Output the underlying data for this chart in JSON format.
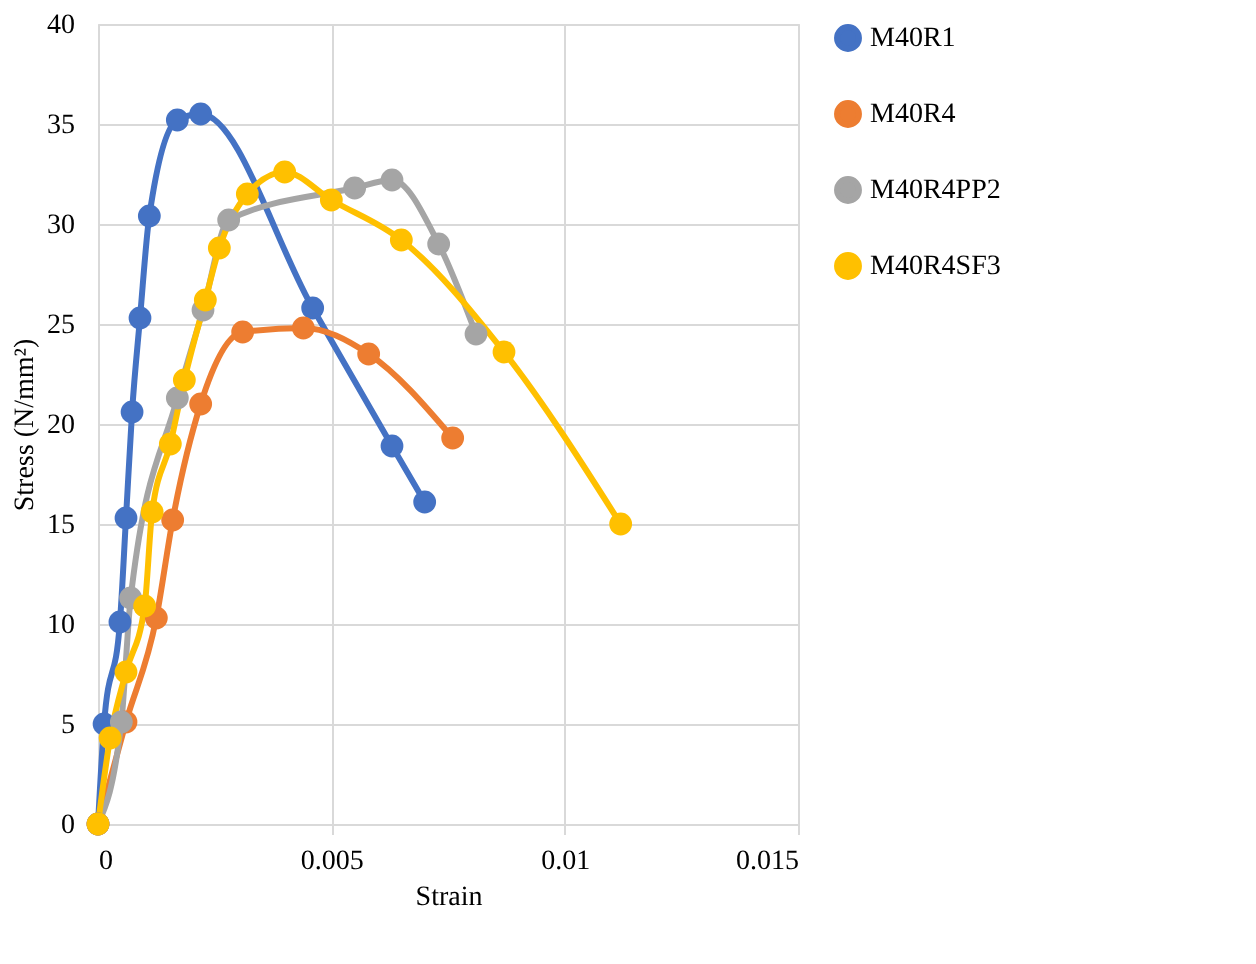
{
  "chart_data": {
    "type": "line",
    "xlabel": "Strain",
    "ylabel": "Stress (N/mm²)",
    "xlim": [
      0,
      0.015
    ],
    "xticks": [
      0,
      0.005,
      0.01,
      0.015
    ],
    "ylim": [
      0,
      40
    ],
    "yticks": [
      0,
      5,
      10,
      15,
      20,
      25,
      30,
      35,
      40
    ],
    "grid": true,
    "legend": "right",
    "marker": "circle",
    "line_style": "solid",
    "series": [
      {
        "name": "M40R1",
        "color": "#4472c4",
        "x": [
          0,
          0.00013,
          0.00047,
          0.0006,
          0.00073,
          0.0009,
          0.0011,
          0.0017,
          0.0022,
          0.0046,
          0.0063,
          0.007
        ],
        "values": [
          0,
          5,
          10.1,
          15.3,
          20.6,
          25.3,
          30.4,
          35.2,
          35.5,
          25.8,
          18.9,
          16.1
        ]
      },
      {
        "name": "M40R4",
        "color": "#ed7d31",
        "x": [
          0,
          0.0006,
          0.00125,
          0.0016,
          0.0022,
          0.0031,
          0.0044,
          0.0058,
          0.0076
        ],
        "values": [
          0,
          5.1,
          10.3,
          15.2,
          21,
          24.6,
          24.8,
          23.5,
          19.3
        ]
      },
      {
        "name": "M40R4PP2",
        "color": "#a5a5a5",
        "x": [
          0,
          0.0005,
          0.0007,
          0.0017,
          0.00225,
          0.0028,
          0.0055,
          0.0063,
          0.0073,
          0.0081
        ],
        "values": [
          0,
          5.1,
          11.3,
          21.3,
          25.7,
          30.2,
          31.8,
          32.2,
          29,
          24.5
        ]
      },
      {
        "name": "M40R4SF3",
        "color": "#ffc000",
        "x": [
          0,
          0.00026,
          0.0006,
          0.001,
          0.00116,
          0.00155,
          0.00185,
          0.0023,
          0.0026,
          0.0032,
          0.004,
          0.005,
          0.0065,
          0.0087,
          0.0112
        ],
        "values": [
          0,
          4.3,
          7.6,
          10.9,
          15.6,
          19,
          22.2,
          26.2,
          28.8,
          31.5,
          32.6,
          31.2,
          29.2,
          23.6,
          15
        ]
      }
    ]
  }
}
